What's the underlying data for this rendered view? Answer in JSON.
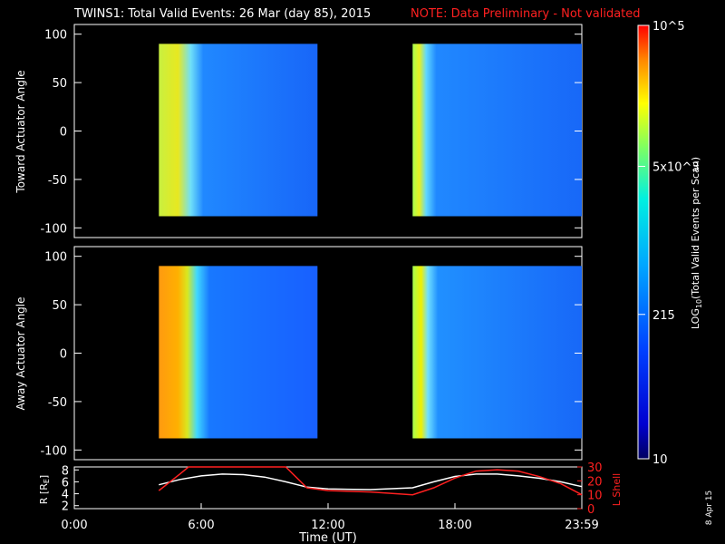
{
  "header": {
    "title": "TWINS1: Total Valid Events: 26 Mar (day  85), 2015",
    "note": "NOTE: Data Preliminary - Not validated"
  },
  "stamp": "8 Apr 15",
  "colors": {
    "background": "#000000",
    "note": "#ff2020",
    "lshell_line": "#ff2020",
    "r_line": "#ffffff"
  },
  "chart_data": [
    {
      "type": "heatmap",
      "ylabel": "Toward Actuator Angle",
      "ylim": [
        -110,
        110
      ],
      "y_ticks": [
        "100",
        "50",
        "0",
        "-50",
        "-100"
      ],
      "xlim": [
        0,
        24
      ],
      "data_blocks": [
        {
          "x_start": 4.0,
          "x_end": 11.5,
          "y_start": -88,
          "y_end": 90
        },
        {
          "x_start": 16.0,
          "x_end": 24.0,
          "y_start": -88,
          "y_end": 90
        }
      ]
    },
    {
      "type": "heatmap",
      "ylabel": "Away Actuator Angle",
      "ylim": [
        -110,
        110
      ],
      "y_ticks": [
        "100",
        "50",
        "0",
        "-50",
        "-100"
      ],
      "xlim": [
        0,
        24
      ],
      "data_blocks": [
        {
          "x_start": 4.0,
          "x_end": 11.5,
          "y_start": -88,
          "y_end": 90
        },
        {
          "x_start": 16.0,
          "x_end": 24.0,
          "y_start": -88,
          "y_end": 90
        }
      ]
    },
    {
      "type": "line",
      "ylabel": "R [RE]",
      "ylabel_right": "L Shell",
      "xlabel": "Time (UT)",
      "xlim": [
        0,
        24
      ],
      "x_ticks": [
        "0:00",
        "6:00",
        "12:00",
        "18:00",
        "23:59"
      ],
      "ylim_left": [
        1.5,
        8.5
      ],
      "y_ticks_left": [
        "8",
        "6",
        "4",
        "2"
      ],
      "ylim_right": [
        0,
        30
      ],
      "y_ticks_right": [
        "30",
        "20",
        "10",
        "0"
      ],
      "series": [
        {
          "name": "R",
          "axis": "left",
          "x": [
            4.0,
            5.0,
            6.0,
            7.0,
            8.0,
            9.0,
            10.0,
            11.0,
            12.0,
            14.0,
            16.0,
            17.0,
            18.0,
            19.0,
            20.0,
            21.0,
            22.0,
            23.0,
            24.0
          ],
          "y": [
            5.5,
            6.4,
            7.0,
            7.3,
            7.2,
            6.8,
            6.0,
            5.1,
            4.8,
            4.7,
            5.0,
            6.0,
            6.9,
            7.3,
            7.3,
            7.0,
            6.6,
            6.0,
            5.2
          ]
        },
        {
          "name": "L Shell",
          "axis": "right",
          "x": [
            4.0,
            5.0,
            5.4,
            10.0,
            11.0,
            12.0,
            14.0,
            16.0,
            17.0,
            18.0,
            19.0,
            20.0,
            21.0,
            22.0,
            23.0,
            24.0
          ],
          "y": [
            13,
            25,
            30,
            30,
            15,
            13,
            12,
            10,
            15,
            22,
            27,
            28,
            27,
            23,
            18,
            10
          ]
        }
      ]
    }
  ],
  "colorbar": {
    "ylabel": "LOG10(Total Valid Events per Scan)",
    "ticks": [
      {
        "value": 10,
        "label": "10"
      },
      {
        "value": 215,
        "label": "215"
      },
      {
        "value": 5000,
        "label": "5x10^3"
      },
      {
        "value": 100000,
        "label": "10^5"
      }
    ],
    "range": [
      10,
      100000
    ],
    "scale": "log",
    "colormap": [
      "#000080",
      "#0000ff",
      "#0060ff",
      "#00c0ff",
      "#00ffc0",
      "#a0ff40",
      "#ffff00",
      "#ffa000",
      "#ff2000"
    ]
  }
}
